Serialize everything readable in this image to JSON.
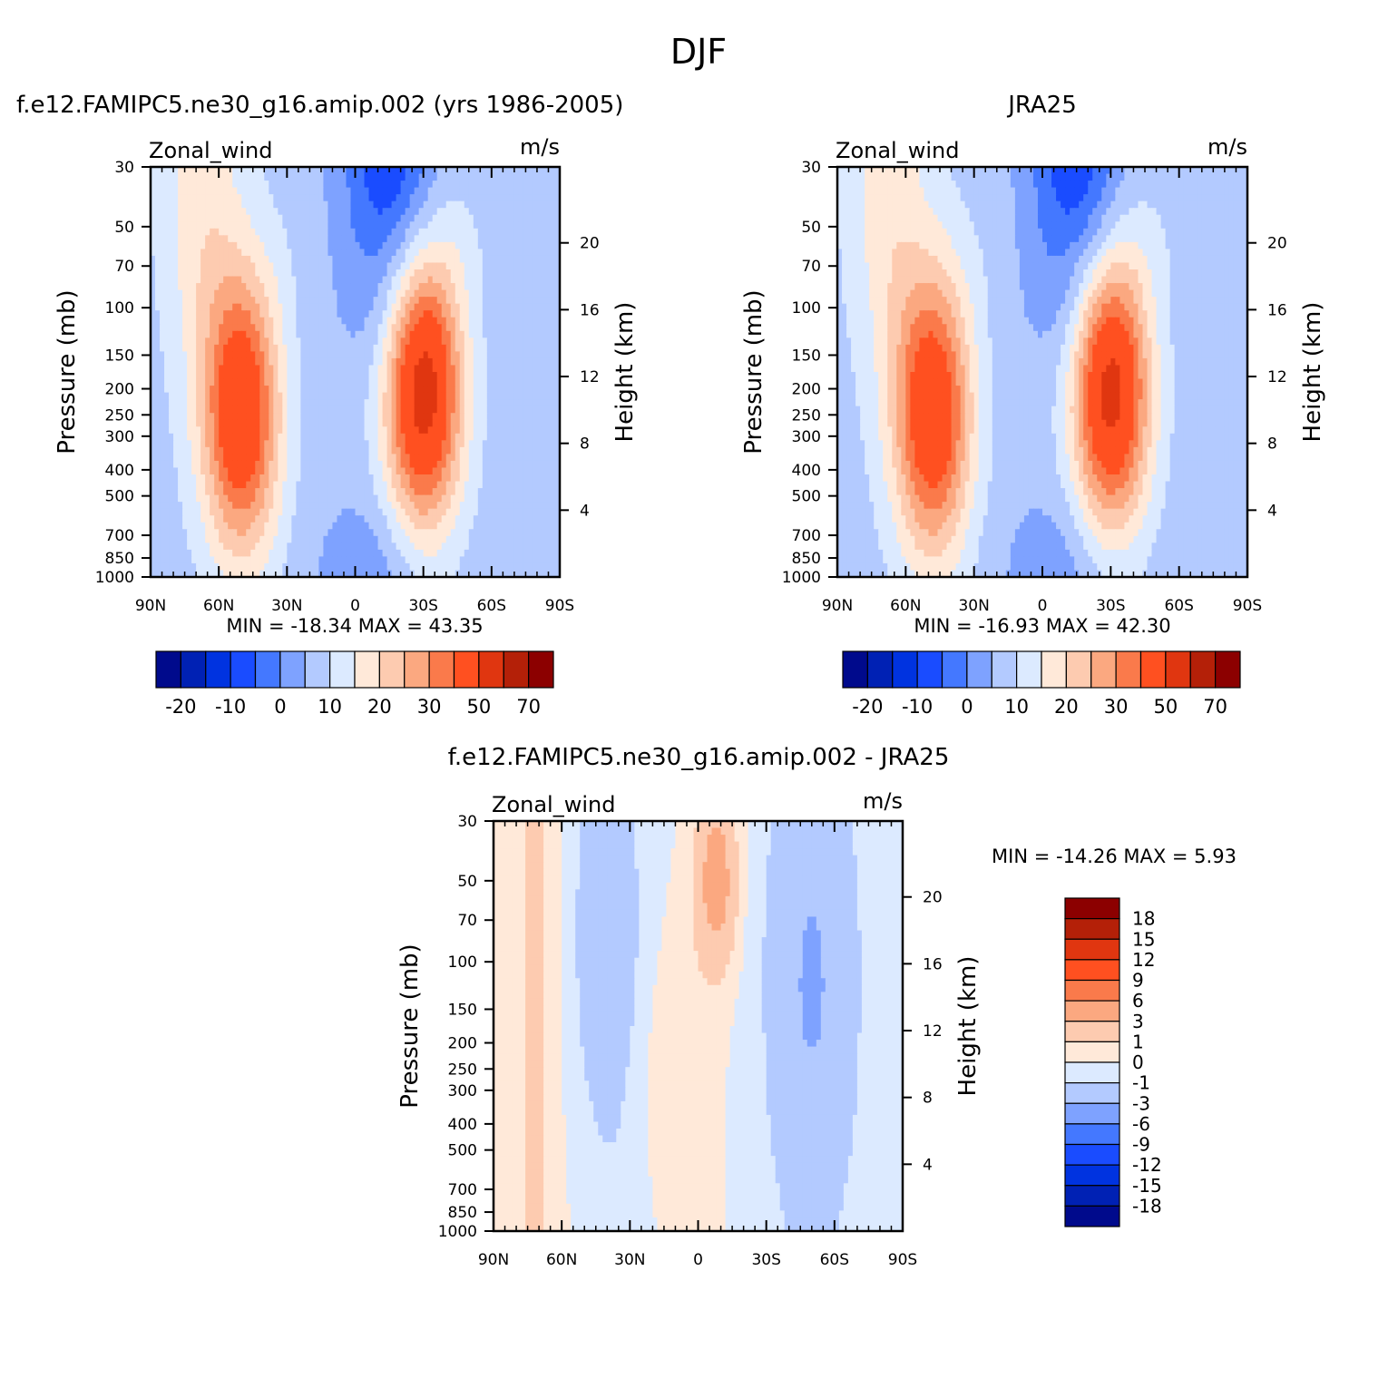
{
  "figure_title": "DJF",
  "chart_data": [
    {
      "type": "heatmap",
      "title": "f.e12.FAMIPC5.ne30_g16.amip.002 (yrs 1986-2005)",
      "left_string": "Zonal_wind",
      "right_string": "m/s",
      "ylabel": "Pressure (mb)",
      "ylabel_right": "Height (km)",
      "xticks": [
        "90N",
        "60N",
        "30N",
        "0",
        "30S",
        "60S",
        "90S"
      ],
      "yticks": [
        "30",
        "50",
        "70",
        "100",
        "150",
        "200",
        "250",
        "300",
        "400",
        "500",
        "700",
        "850",
        "1000"
      ],
      "yticks_right": [
        "20",
        "16",
        "12",
        "8",
        "4"
      ],
      "min_label": "MIN = -18.34",
      "max_label": "MAX = 43.35",
      "min": -18.34,
      "max": 43.35,
      "colorbar_labels": [
        "-20",
        "-10",
        "0",
        "10",
        "20",
        "30",
        "50",
        "70"
      ],
      "jets": [
        {
          "lat": -30,
          "p": 200,
          "max": 43.35
        },
        {
          "lat": 50,
          "p": 250,
          "max": 36
        }
      ]
    },
    {
      "type": "heatmap",
      "title": "JRA25",
      "left_string": "Zonal_wind",
      "right_string": "m/s",
      "ylabel": "Pressure (mb)",
      "ylabel_right": "Height (km)",
      "xticks": [
        "90N",
        "60N",
        "30N",
        "0",
        "30S",
        "60S",
        "90S"
      ],
      "yticks": [
        "30",
        "50",
        "70",
        "100",
        "150",
        "200",
        "250",
        "300",
        "400",
        "500",
        "700",
        "850",
        "1000"
      ],
      "yticks_right": [
        "20",
        "16",
        "12",
        "8",
        "4"
      ],
      "min_label": "MIN = -16.93",
      "max_label": "MAX = 42.30",
      "min": -16.93,
      "max": 42.3,
      "colorbar_labels": [
        "-20",
        "-10",
        "0",
        "10",
        "20",
        "30",
        "50",
        "70"
      ],
      "jets": [
        {
          "lat": -30,
          "p": 200,
          "max": 42.3
        },
        {
          "lat": 48,
          "p": 250,
          "max": 36
        }
      ]
    },
    {
      "type": "heatmap",
      "title": "f.e12.FAMIPC5.ne30_g16.amip.002 - JRA25",
      "left_string": "Zonal_wind",
      "right_string": "m/s",
      "ylabel": "Pressure (mb)",
      "ylabel_right": "Height (km)",
      "xticks": [
        "90N",
        "60N",
        "30N",
        "0",
        "30S",
        "60S",
        "90S"
      ],
      "yticks": [
        "30",
        "50",
        "70",
        "100",
        "150",
        "200",
        "250",
        "300",
        "400",
        "500",
        "700",
        "850",
        "1000"
      ],
      "yticks_right": [
        "20",
        "16",
        "12",
        "8",
        "4"
      ],
      "min_label": "MIN = -14.26",
      "max_label": "MAX = 5.93",
      "min": -14.26,
      "max": 5.93,
      "colorbar_labels": [
        "18",
        "15",
        "12",
        "9",
        "6",
        "3",
        "1",
        "0",
        "-1",
        "-3",
        "-6",
        "-9",
        "-12",
        "-15",
        "-18"
      ]
    }
  ],
  "colors": {
    "levels_main": [
      "#000a8c",
      "#0021b4",
      "#0033e0",
      "#1a4cff",
      "#4478ff",
      "#7ea2ff",
      "#b3caff",
      "#dceaff",
      "#ffe9d9",
      "#fdcbb0",
      "#fba880",
      "#fa7a4b",
      "#ff5020",
      "#e03610",
      "#b42008",
      "#8c0000"
    ],
    "levels_diff": [
      "#8c0000",
      "#b42008",
      "#e03610",
      "#ff5020",
      "#fa7a4b",
      "#fba880",
      "#fdcbb0",
      "#ffe9d9",
      "#dceaff",
      "#b3caff",
      "#7ea2ff",
      "#4478ff",
      "#1a4cff",
      "#0033e0",
      "#0021b4",
      "#000a8c"
    ]
  }
}
